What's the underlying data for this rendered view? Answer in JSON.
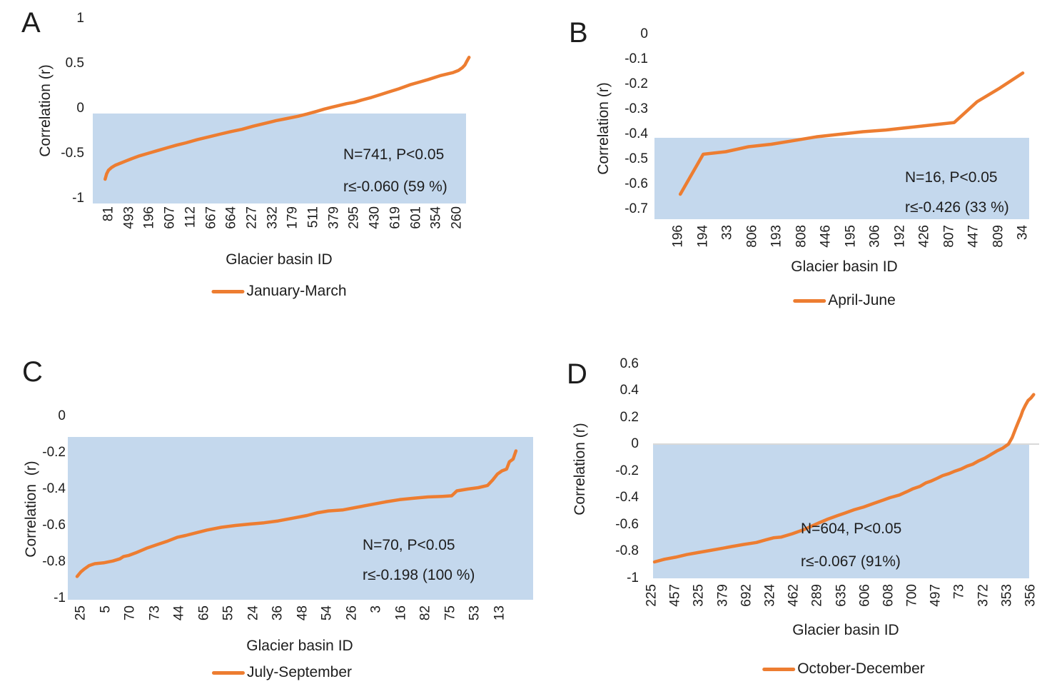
{
  "colors": {
    "line_color": "#ED7D31",
    "band_color": "#C4D8ED",
    "zero_line_color": "#D9D9D9",
    "text_color": "#1D1D1D",
    "background": "#FFFFFF"
  },
  "chart_data": [
    {
      "panel_letter": "A",
      "type": "line",
      "series_name": "January-March",
      "x_label": "Glacier basin ID",
      "y_label": "Correlation (r)",
      "ylim": [
        -1,
        1
      ],
      "y_tick_labels": [
        "1",
        "0.5",
        "0",
        "-0.5",
        "-1"
      ],
      "y_tick_values": [
        1,
        0.5,
        0,
        -0.5,
        -1
      ],
      "x_tick_labels": [
        "81",
        "493",
        "196",
        "607",
        "112",
        "667",
        "664",
        "227",
        "332",
        "179",
        "511",
        "379",
        "295",
        "430",
        "619",
        "601",
        "354",
        "260"
      ],
      "annotation": {
        "line1": "N=741, P<0.05",
        "line2": "r≤-0.060 (59 %)"
      },
      "significance_band": {
        "top_r": -0.06,
        "bottom_r": -1.06
      },
      "zero_line": false,
      "legend_position": "bottom",
      "points": [
        [
          0.033,
          -0.79
        ],
        [
          0.037,
          -0.73
        ],
        [
          0.042,
          -0.69
        ],
        [
          0.05,
          -0.66
        ],
        [
          0.06,
          -0.635
        ],
        [
          0.075,
          -0.61
        ],
        [
          0.09,
          -0.585
        ],
        [
          0.105,
          -0.56
        ],
        [
          0.125,
          -0.53
        ],
        [
          0.15,
          -0.5
        ],
        [
          0.175,
          -0.47
        ],
        [
          0.2,
          -0.44
        ],
        [
          0.225,
          -0.41
        ],
        [
          0.25,
          -0.385
        ],
        [
          0.28,
          -0.35
        ],
        [
          0.31,
          -0.32
        ],
        [
          0.34,
          -0.29
        ],
        [
          0.37,
          -0.26
        ],
        [
          0.4,
          -0.235
        ],
        [
          0.43,
          -0.2
        ],
        [
          0.46,
          -0.17
        ],
        [
          0.49,
          -0.14
        ],
        [
          0.52,
          -0.115
        ],
        [
          0.55,
          -0.09
        ],
        [
          0.574,
          -0.065
        ],
        [
          0.6,
          -0.035
        ],
        [
          0.62,
          -0.01
        ],
        [
          0.64,
          0.01
        ],
        [
          0.66,
          0.03
        ],
        [
          0.68,
          0.05
        ],
        [
          0.7,
          0.065
        ],
        [
          0.72,
          0.09
        ],
        [
          0.747,
          0.12
        ],
        [
          0.77,
          0.15
        ],
        [
          0.8,
          0.19
        ],
        [
          0.82,
          0.215
        ],
        [
          0.85,
          0.26
        ],
        [
          0.875,
          0.29
        ],
        [
          0.9,
          0.32
        ],
        [
          0.93,
          0.36
        ],
        [
          0.95,
          0.38
        ],
        [
          0.965,
          0.395
        ],
        [
          0.98,
          0.42
        ],
        [
          0.99,
          0.45
        ],
        [
          0.997,
          0.48
        ],
        [
          1.002,
          0.52
        ],
        [
          1.008,
          0.565
        ]
      ]
    },
    {
      "panel_letter": "B",
      "type": "line",
      "series_name": "April-June",
      "x_label": "Glacier basin ID",
      "y_label": "Correlation (r)",
      "ylim": [
        -0.7,
        0
      ],
      "y_tick_labels": [
        "0",
        "-0.1",
        "-0.2",
        "-0.3",
        "-0.4",
        "-0.5",
        "-0.6",
        "-0.7"
      ],
      "y_tick_values": [
        0,
        -0.1,
        -0.2,
        -0.3,
        -0.4,
        -0.5,
        -0.6,
        -0.7
      ],
      "x_tick_labels": [
        "196",
        "194",
        "33",
        "806",
        "193",
        "808",
        "446",
        "195",
        "306",
        "192",
        "426",
        "807",
        "447",
        "809",
        "34"
      ],
      "annotation": {
        "line1": "N=16, P<0.05",
        "line2": "r≤-0.426 (33 %)"
      },
      "significance_band": {
        "top_r": -0.414,
        "bottom_r": -0.74
      },
      "zero_line": false,
      "legend_position": "bottom",
      "points": [
        [
          0.069,
          -0.64
        ],
        [
          0.13,
          -0.48
        ],
        [
          0.19,
          -0.47
        ],
        [
          0.251,
          -0.45
        ],
        [
          0.312,
          -0.44
        ],
        [
          0.373,
          -0.425
        ],
        [
          0.434,
          -0.41
        ],
        [
          0.495,
          -0.4
        ],
        [
          0.556,
          -0.39
        ],
        [
          0.617,
          -0.383
        ],
        [
          0.678,
          -0.373
        ],
        [
          0.739,
          -0.363
        ],
        [
          0.8,
          -0.353
        ],
        [
          0.861,
          -0.27
        ],
        [
          0.922,
          -0.215
        ],
        [
          0.983,
          -0.155
        ]
      ]
    },
    {
      "panel_letter": "C",
      "type": "line",
      "series_name": "July-September",
      "x_label": "Glacier basin ID",
      "y_label": "Correlation  (r)",
      "ylim": [
        -1,
        0
      ],
      "y_tick_labels": [
        "0",
        "-0.2",
        "-0.4",
        "-0.6",
        "-0.8",
        "-1"
      ],
      "y_tick_values": [
        0,
        -0.2,
        -0.4,
        -0.6,
        -0.8,
        -1
      ],
      "x_tick_labels": [
        "25",
        "5",
        "70",
        "73",
        "44",
        "65",
        "55",
        "24",
        "36",
        "48",
        "54",
        "26",
        "3",
        "16",
        "82",
        "75",
        "53",
        "13"
      ],
      "annotation": {
        "line1": "N=70, P<0.05",
        "line2": "r≤-0.198 (100 %)"
      },
      "significance_band": {
        "top_r": -0.114,
        "bottom_r": -1.01
      },
      "zero_line": false,
      "legend_position": "bottom",
      "points": [
        [
          0.02,
          -0.88
        ],
        [
          0.028,
          -0.855
        ],
        [
          0.035,
          -0.84
        ],
        [
          0.046,
          -0.82
        ],
        [
          0.058,
          -0.81
        ],
        [
          0.077,
          -0.805
        ],
        [
          0.097,
          -0.795
        ],
        [
          0.112,
          -0.783
        ],
        [
          0.12,
          -0.77
        ],
        [
          0.13,
          -0.765
        ],
        [
          0.146,
          -0.75
        ],
        [
          0.169,
          -0.725
        ],
        [
          0.192,
          -0.705
        ],
        [
          0.215,
          -0.685
        ],
        [
          0.235,
          -0.665
        ],
        [
          0.253,
          -0.655
        ],
        [
          0.276,
          -0.64
        ],
        [
          0.299,
          -0.625
        ],
        [
          0.33,
          -0.61
        ],
        [
          0.36,
          -0.6
        ],
        [
          0.391,
          -0.592
        ],
        [
          0.422,
          -0.585
        ],
        [
          0.452,
          -0.575
        ],
        [
          0.483,
          -0.56
        ],
        [
          0.514,
          -0.545
        ],
        [
          0.537,
          -0.53
        ],
        [
          0.56,
          -0.52
        ],
        [
          0.59,
          -0.515
        ],
        [
          0.621,
          -0.5
        ],
        [
          0.652,
          -0.485
        ],
        [
          0.683,
          -0.47
        ],
        [
          0.713,
          -0.458
        ],
        [
          0.744,
          -0.45
        ],
        [
          0.774,
          -0.443
        ],
        [
          0.805,
          -0.44
        ],
        [
          0.825,
          -0.437
        ],
        [
          0.836,
          -0.41
        ],
        [
          0.859,
          -0.4
        ],
        [
          0.882,
          -0.392
        ],
        [
          0.902,
          -0.38
        ],
        [
          0.913,
          -0.35
        ],
        [
          0.923,
          -0.318
        ],
        [
          0.933,
          -0.3
        ],
        [
          0.943,
          -0.29
        ],
        [
          0.949,
          -0.25
        ],
        [
          0.957,
          -0.235
        ],
        [
          0.963,
          -0.19
        ]
      ]
    },
    {
      "panel_letter": "D",
      "type": "line",
      "series_name": "October-December",
      "x_label": "Glacier basin ID",
      "y_label": "Correlation (r)",
      "ylim": [
        -1,
        0.6
      ],
      "y_tick_labels": [
        "0.6",
        "0.4",
        "0.2",
        "0",
        "-0.2",
        "-0.4",
        "-0.6",
        "-0.8",
        "-1"
      ],
      "y_tick_values": [
        0.6,
        0.4,
        0.2,
        0,
        -0.2,
        -0.4,
        -0.6,
        -0.8,
        -1
      ],
      "x_tick_labels": [
        "225",
        "457",
        "325",
        "379",
        "692",
        "324",
        "462",
        "289",
        "635",
        "606",
        "608",
        "700",
        "497",
        "73",
        "372",
        "353",
        "356"
      ],
      "annotation": {
        "line1": "N=604, P<0.05",
        "line2": "r≤-0.067 (91%)"
      },
      "significance_band": {
        "top_r": 0,
        "bottom_r": -1
      },
      "zero_line": true,
      "legend_position": "bottom",
      "points": [
        [
          0.004,
          -0.88
        ],
        [
          0.03,
          -0.86
        ],
        [
          0.06,
          -0.845
        ],
        [
          0.09,
          -0.825
        ],
        [
          0.12,
          -0.81
        ],
        [
          0.15,
          -0.795
        ],
        [
          0.18,
          -0.78
        ],
        [
          0.21,
          -0.765
        ],
        [
          0.24,
          -0.75
        ],
        [
          0.275,
          -0.735
        ],
        [
          0.3,
          -0.715
        ],
        [
          0.32,
          -0.7
        ],
        [
          0.34,
          -0.695
        ],
        [
          0.37,
          -0.67
        ],
        [
          0.4,
          -0.64
        ],
        [
          0.42,
          -0.615
        ],
        [
          0.44,
          -0.59
        ],
        [
          0.465,
          -0.56
        ],
        [
          0.49,
          -0.535
        ],
        [
          0.51,
          -0.515
        ],
        [
          0.535,
          -0.49
        ],
        [
          0.56,
          -0.47
        ],
        [
          0.585,
          -0.445
        ],
        [
          0.61,
          -0.42
        ],
        [
          0.63,
          -0.4
        ],
        [
          0.655,
          -0.38
        ],
        [
          0.675,
          -0.355
        ],
        [
          0.69,
          -0.335
        ],
        [
          0.71,
          -0.315
        ],
        [
          0.725,
          -0.29
        ],
        [
          0.74,
          -0.275
        ],
        [
          0.755,
          -0.256
        ],
        [
          0.77,
          -0.235
        ],
        [
          0.787,
          -0.22
        ],
        [
          0.8,
          -0.205
        ],
        [
          0.82,
          -0.185
        ],
        [
          0.835,
          -0.165
        ],
        [
          0.85,
          -0.15
        ],
        [
          0.866,
          -0.125
        ],
        [
          0.882,
          -0.105
        ],
        [
          0.9,
          -0.075
        ],
        [
          0.915,
          -0.05
        ],
        [
          0.93,
          -0.03
        ],
        [
          0.945,
          0
        ],
        [
          0.955,
          0.05
        ],
        [
          0.964,
          0.115
        ],
        [
          0.972,
          0.17
        ],
        [
          0.978,
          0.21
        ],
        [
          0.983,
          0.25
        ],
        [
          0.99,
          0.29
        ],
        [
          0.997,
          0.325
        ],
        [
          1.005,
          0.345
        ],
        [
          1.012,
          0.37
        ]
      ]
    }
  ]
}
